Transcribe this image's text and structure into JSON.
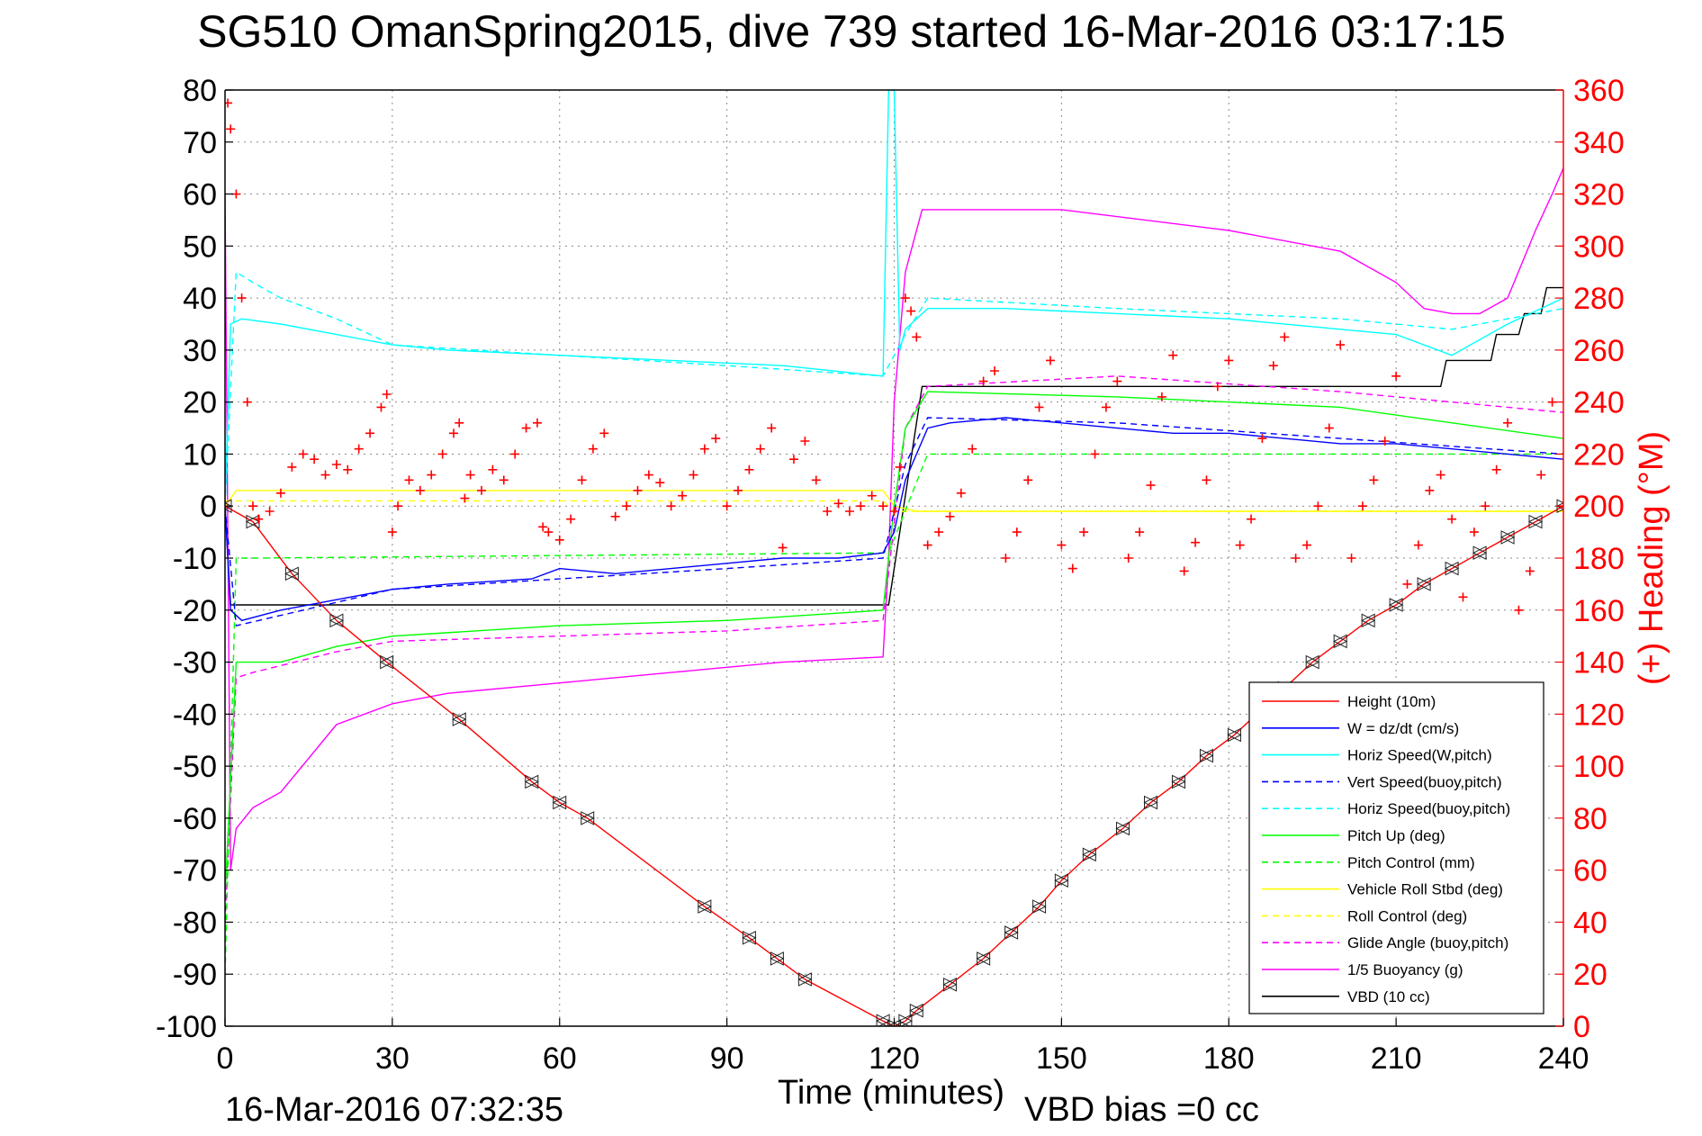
{
  "title": "SG510 OmanSpring2015, dive 739 started 16-Mar-2016 03:17:15",
  "footer": {
    "end_time": "16-Mar-2016 07:32:35",
    "vbd_bias": "VBD bias =0 cc"
  },
  "chart_data": {
    "type": "line",
    "title": "SG510 OmanSpring2015, dive 739 started 16-Mar-2016 03:17:15",
    "xlabel": "Time (minutes)",
    "ylabel": "",
    "y2label": "(+) Heading (°M)",
    "xlim": [
      0,
      240
    ],
    "ylim": [
      -100,
      80
    ],
    "y2lim": [
      0,
      360
    ],
    "xticks": [
      "0",
      "30",
      "60",
      "90",
      "120",
      "150",
      "180",
      "210",
      "240"
    ],
    "yticks": [
      "80",
      "70",
      "60",
      "50",
      "40",
      "30",
      "20",
      "10",
      "0",
      "-10",
      "-20",
      "-30",
      "-40",
      "-50",
      "-60",
      "-70",
      "-80",
      "-90",
      "-100"
    ],
    "y2ticks": [
      "360",
      "340",
      "320",
      "300",
      "280",
      "260",
      "240",
      "220",
      "200",
      "180",
      "160",
      "140",
      "120",
      "100",
      "80",
      "60",
      "40",
      "20",
      "0"
    ],
    "grid": true,
    "legend_position": "bottom-right",
    "legend": [
      {
        "label": "Height (10m)",
        "color": "#ff0000",
        "dash": false
      },
      {
        "label": "W = dz/dt (cm/s)",
        "color": "#0000ff",
        "dash": false
      },
      {
        "label": "Horiz Speed(W,pitch)",
        "color": "#00ffff",
        "dash": false
      },
      {
        "label": "Vert Speed(buoy,pitch)",
        "color": "#0000ff",
        "dash": true
      },
      {
        "label": "Horiz Speed(buoy,pitch)",
        "color": "#00ffff",
        "dash": true
      },
      {
        "label": "Pitch Up (deg)",
        "color": "#00ff00",
        "dash": false
      },
      {
        "label": "Pitch Control (mm)",
        "color": "#00ff00",
        "dash": true
      },
      {
        "label": "Vehicle Roll Stbd (deg)",
        "color": "#ffff00",
        "dash": false
      },
      {
        "label": "Roll Control (deg)",
        "color": "#ffff00",
        "dash": true
      },
      {
        "label": "Glide Angle (buoy,pitch)",
        "color": "#ff00ff",
        "dash": true
      },
      {
        "label": "1/5 Buoyancy (g)",
        "color": "#ff00ff",
        "dash": false
      },
      {
        "label": "VBD (10 cc)",
        "color": "#000000",
        "dash": false
      }
    ],
    "series": [
      {
        "name": "Height (10m)",
        "color": "#ff0000",
        "x": [
          0,
          5,
          12,
          20,
          29,
          42,
          55,
          60,
          65,
          86,
          94,
          99,
          104,
          118,
          120,
          122,
          124,
          130,
          136,
          141,
          146,
          150,
          155,
          161,
          166,
          171,
          176,
          181,
          186,
          190,
          195,
          200,
          205,
          210,
          215,
          220,
          225,
          230,
          235,
          240
        ],
        "y": [
          0,
          -3,
          -13,
          -22,
          -30,
          -41,
          -53,
          -57,
          -60,
          -77,
          -83,
          -87,
          -91,
          -99,
          -100,
          -99,
          -97,
          -92,
          -87,
          -82,
          -77,
          -72,
          -67,
          -62,
          -57,
          -53,
          -48,
          -44,
          -39,
          -35,
          -30,
          -26,
          -22,
          -19,
          -15,
          -12,
          -9,
          -6,
          -3,
          0
        ]
      },
      {
        "name": "W = dz/dt (cm/s)",
        "color": "#0000ff",
        "x": [
          0,
          1,
          3,
          10,
          20,
          30,
          40,
          55,
          60,
          70,
          80,
          90,
          100,
          110,
          118,
          120,
          122,
          126,
          130,
          140,
          150,
          160,
          170,
          180,
          190,
          200,
          210,
          220,
          230,
          240
        ],
        "y": [
          0,
          -20,
          -22,
          -20,
          -18,
          -16,
          -15,
          -14,
          -12,
          -13,
          -12,
          -11,
          -10,
          -10,
          -9,
          -5,
          5,
          15,
          16,
          17,
          16,
          15,
          14,
          14,
          13,
          12,
          12,
          11,
          10,
          9
        ]
      },
      {
        "name": "Horiz Speed(W,pitch)",
        "color": "#00ffff",
        "x": [
          0,
          1,
          3,
          10,
          20,
          30,
          40,
          60,
          80,
          100,
          118,
          119,
          120,
          121,
          122,
          126,
          140,
          160,
          180,
          200,
          210,
          220,
          230,
          236,
          240
        ],
        "y": [
          0,
          35,
          36,
          35,
          33,
          31,
          30,
          29,
          28,
          27,
          25,
          80,
          80,
          30,
          34,
          38,
          38,
          37,
          36,
          34,
          33,
          29,
          35,
          38,
          40
        ]
      },
      {
        "name": "Horiz Speed(buoy,pitch)",
        "color": "#00ffff",
        "dash": true,
        "x": [
          0,
          2,
          5,
          10,
          20,
          30,
          60,
          90,
          118,
          122,
          126,
          160,
          200,
          220,
          230,
          240
        ],
        "y": [
          0,
          45,
          43,
          40,
          36,
          31,
          29,
          27,
          25,
          33,
          40,
          38,
          36,
          34,
          36,
          38
        ]
      },
      {
        "name": "Vert Speed(buoy,pitch)",
        "color": "#0000ff",
        "dash": true,
        "x": [
          0,
          2,
          10,
          30,
          60,
          90,
          118,
          122,
          126,
          160,
          200,
          240
        ],
        "y": [
          0,
          -23,
          -21,
          -16,
          -14,
          -12,
          -10,
          8,
          17,
          16,
          13,
          10
        ]
      },
      {
        "name": "Pitch Up (deg)",
        "color": "#00ff00",
        "x": [
          0,
          2,
          10,
          20,
          30,
          60,
          90,
          118,
          120,
          122,
          126,
          160,
          200,
          240
        ],
        "y": [
          -75,
          -30,
          -30,
          -27,
          -25,
          -23,
          -22,
          -20,
          0,
          15,
          22,
          21,
          19,
          13
        ]
      },
      {
        "name": "Pitch Control (mm)",
        "color": "#00ff00",
        "dash": true,
        "x": [
          0,
          2,
          5,
          118,
          119,
          126,
          240
        ],
        "y": [
          -90,
          -10,
          -10,
          -9,
          -9,
          10,
          10
        ]
      },
      {
        "name": "Vehicle Roll Stbd (deg)",
        "color": "#ffff00",
        "x": [
          0,
          2,
          5,
          30,
          60,
          90,
          118,
          120,
          124,
          160,
          200,
          240
        ],
        "y": [
          0,
          3,
          3,
          3,
          3,
          3,
          3,
          0,
          -1,
          -1,
          -1,
          -1
        ]
      },
      {
        "name": "Roll Control (deg)",
        "color": "#ffff00",
        "dash": true,
        "x": [
          0,
          118,
          120,
          240
        ],
        "y": [
          1,
          1,
          -1,
          -1
        ]
      },
      {
        "name": "Glide Angle (buoy,pitch)",
        "color": "#ff00ff",
        "dash": true,
        "x": [
          0,
          2,
          5,
          20,
          30,
          60,
          90,
          118,
          122,
          126,
          160,
          200,
          240
        ],
        "y": [
          -80,
          -33,
          -32,
          -28,
          -26,
          -25,
          -24,
          -22,
          15,
          23,
          25,
          22,
          18
        ]
      },
      {
        "name": "1/5 Buoyancy (g)",
        "color": "#ff00ff",
        "x": [
          0,
          1,
          2,
          5,
          10,
          20,
          30,
          40,
          60,
          80,
          100,
          118,
          119,
          120,
          122,
          125,
          150,
          180,
          200,
          210,
          215,
          220,
          225,
          230,
          235,
          238,
          240
        ],
        "y": [
          60,
          -70,
          -62,
          -58,
          -55,
          -42,
          -38,
          -36,
          -34,
          -32,
          -30,
          -29,
          -10,
          20,
          45,
          57,
          57,
          53,
          49,
          43,
          38,
          37,
          37,
          40,
          53,
          60,
          65
        ]
      },
      {
        "name": "VBD (10 cc)",
        "color": "#000000",
        "x": [
          0,
          1,
          5,
          118,
          119,
          125,
          218,
          219,
          227,
          228,
          232,
          233,
          236,
          237,
          240
        ],
        "y": [
          0,
          -19,
          -19,
          -19,
          -19,
          23,
          23,
          28,
          28,
          33,
          33,
          37,
          37,
          42,
          42
        ]
      },
      {
        "name": "Heading (+)",
        "color": "#ff0000",
        "marker": "+",
        "axis": "right",
        "x": [
          0.5,
          1,
          2,
          3,
          4,
          5,
          6,
          8,
          10,
          12,
          14,
          16,
          18,
          20,
          22,
          24,
          26,
          28,
          29,
          30,
          31,
          33,
          35,
          37,
          39,
          41,
          42,
          43,
          44,
          46,
          48,
          50,
          52,
          54,
          56,
          57,
          58,
          60,
          62,
          64,
          66,
          68,
          70,
          72,
          74,
          76,
          78,
          80,
          82,
          84,
          86,
          88,
          90,
          92,
          94,
          96,
          98,
          100,
          102,
          104,
          106,
          108,
          110,
          112,
          114,
          116,
          118,
          120,
          121,
          122,
          123,
          124,
          126,
          128,
          130,
          132,
          134,
          136,
          138,
          140,
          142,
          144,
          146,
          148,
          150,
          152,
          154,
          156,
          158,
          160,
          162,
          164,
          166,
          168,
          170,
          172,
          174,
          176,
          178,
          180,
          182,
          184,
          186,
          188,
          190,
          192,
          194,
          196,
          198,
          200,
          202,
          204,
          206,
          208,
          210,
          212,
          214,
          216,
          218,
          220,
          222,
          224,
          226,
          228,
          230,
          232,
          234,
          236,
          238,
          240
        ],
        "y": [
          355,
          345,
          320,
          280,
          240,
          200,
          195,
          198,
          205,
          215,
          220,
          218,
          212,
          216,
          214,
          222,
          228,
          238,
          243,
          190,
          200,
          210,
          206,
          212,
          220,
          228,
          232,
          203,
          212,
          206,
          214,
          210,
          220,
          230,
          232,
          192,
          190,
          187,
          195,
          210,
          222,
          228,
          196,
          200,
          206,
          212,
          209,
          200,
          204,
          212,
          222,
          226,
          200,
          206,
          214,
          222,
          230,
          184,
          218,
          225,
          210,
          198,
          201,
          198,
          200,
          204,
          200,
          198,
          215,
          280,
          275,
          265,
          185,
          190,
          196,
          205,
          222,
          248,
          252,
          180,
          190,
          210,
          238,
          256,
          185,
          176,
          190,
          220,
          238,
          248,
          180,
          190,
          208,
          242,
          258,
          175,
          186,
          210,
          246,
          256,
          185,
          195,
          226,
          254,
          265,
          180,
          185,
          200,
          230,
          262,
          180,
          200,
          210,
          225,
          250,
          170,
          185,
          206,
          212,
          195,
          165,
          190,
          200,
          214,
          232,
          160,
          175,
          212,
          240,
          200
        ]
      }
    ]
  }
}
